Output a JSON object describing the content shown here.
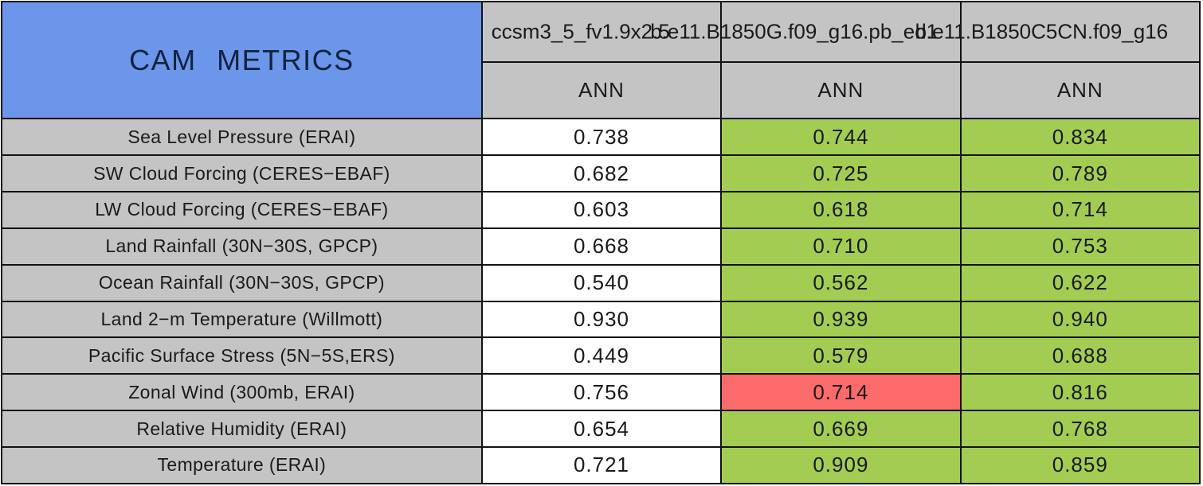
{
  "chart_data": {
    "type": "table",
    "title": "CAM METRICS",
    "columns": [
      {
        "case": "ccsm3_5_fv1.9x2.5",
        "season": "ANN"
      },
      {
        "case": "b.e11.B1850G.f09_g16.pb_ed1",
        "season": "ANN"
      },
      {
        "case": "b.e11.B1850C5CN.f09_g16",
        "season": "ANN"
      }
    ],
    "rows": [
      {
        "metric": "Sea Level Pressure (ERAI)",
        "values": [
          "0.738",
          "0.744",
          "0.834"
        ],
        "cell_colors": [
          "white",
          "green",
          "green"
        ]
      },
      {
        "metric": "SW Cloud Forcing (CERES−EBAF)",
        "values": [
          "0.682",
          "0.725",
          "0.789"
        ],
        "cell_colors": [
          "white",
          "green",
          "green"
        ]
      },
      {
        "metric": "LW Cloud Forcing (CERES−EBAF)",
        "values": [
          "0.603",
          "0.618",
          "0.714"
        ],
        "cell_colors": [
          "white",
          "green",
          "green"
        ]
      },
      {
        "metric": "Land Rainfall (30N−30S, GPCP)",
        "values": [
          "0.668",
          "0.710",
          "0.753"
        ],
        "cell_colors": [
          "white",
          "green",
          "green"
        ]
      },
      {
        "metric": "Ocean Rainfall (30N−30S, GPCP)",
        "values": [
          "0.540",
          "0.562",
          "0.622"
        ],
        "cell_colors": [
          "white",
          "green",
          "green"
        ]
      },
      {
        "metric": "Land 2−m Temperature (Willmott)",
        "values": [
          "0.930",
          "0.939",
          "0.940"
        ],
        "cell_colors": [
          "white",
          "green",
          "green"
        ]
      },
      {
        "metric": "Pacific Surface Stress (5N−5S,ERS)",
        "values": [
          "0.449",
          "0.579",
          "0.688"
        ],
        "cell_colors": [
          "white",
          "green",
          "green"
        ]
      },
      {
        "metric": "Zonal Wind (300mb, ERAI)",
        "values": [
          "0.756",
          "0.714",
          "0.816"
        ],
        "cell_colors": [
          "white",
          "red",
          "green"
        ]
      },
      {
        "metric": "Relative Humidity (ERAI)",
        "values": [
          "0.654",
          "0.669",
          "0.768"
        ],
        "cell_colors": [
          "white",
          "green",
          "green"
        ]
      },
      {
        "metric": "Temperature (ERAI)",
        "values": [
          "0.721",
          "0.909",
          "0.859"
        ],
        "cell_colors": [
          "white",
          "green",
          "green"
        ]
      }
    ],
    "colors": {
      "title_bg": "#6C96E9",
      "header_bg": "#C4C4C4",
      "metric_label_bg": "#C4C4C4",
      "baseline_cell_bg": "#FFFFFF",
      "better_cell_bg": "#A3CC52",
      "worse_cell_bg": "#FB6B6B",
      "border": "#121212"
    },
    "layout": {
      "grid": "on",
      "season_row": true,
      "baseline_column_index": 0
    }
  }
}
